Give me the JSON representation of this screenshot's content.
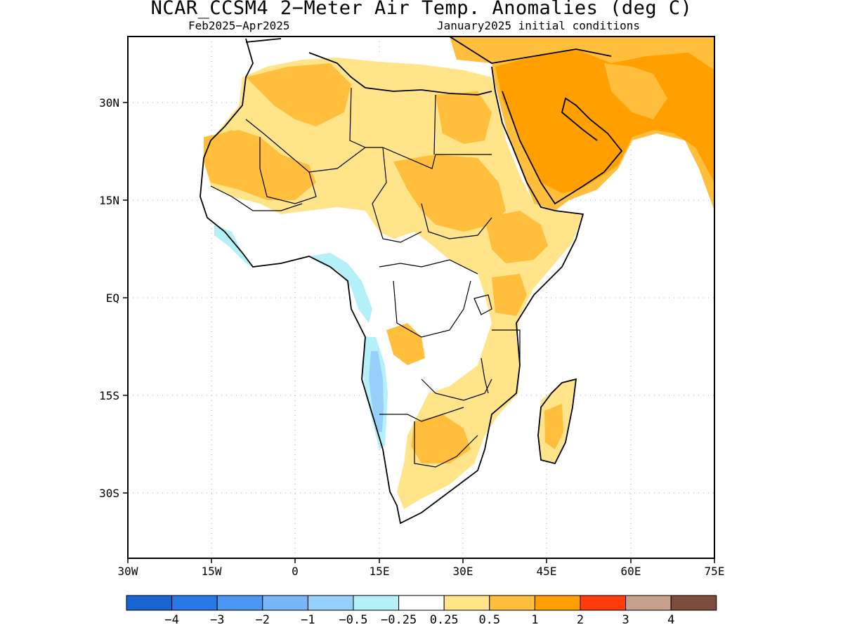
{
  "title": "NCAR_CCSM4 2−Meter Air Temp. Anomalies (deg C)",
  "subtitle_left": "Feb2025−Apr2025",
  "subtitle_right": "January2025 initial conditions",
  "x_ticks": [
    "30W",
    "15W",
    "0",
    "15E",
    "30E",
    "45E",
    "60E",
    "75E"
  ],
  "y_ticks": [
    "30N",
    "15N",
    "EQ",
    "15S",
    "30S"
  ],
  "colorbar": {
    "colors": [
      "#1864d0",
      "#2a78e8",
      "#4a96f0",
      "#78b6f8",
      "#96d0fa",
      "#b4f0f8",
      "#ffffff",
      "#ffe48a",
      "#ffbe3c",
      "#ffa000",
      "#ff3c0a",
      "#c8a08c",
      "#7c4c3c"
    ],
    "labels": [
      "−4",
      "−3",
      "−2",
      "−1",
      "−0.5",
      "−0.25",
      "0.25",
      "0.5",
      "1",
      "2",
      "3",
      "4"
    ]
  }
}
